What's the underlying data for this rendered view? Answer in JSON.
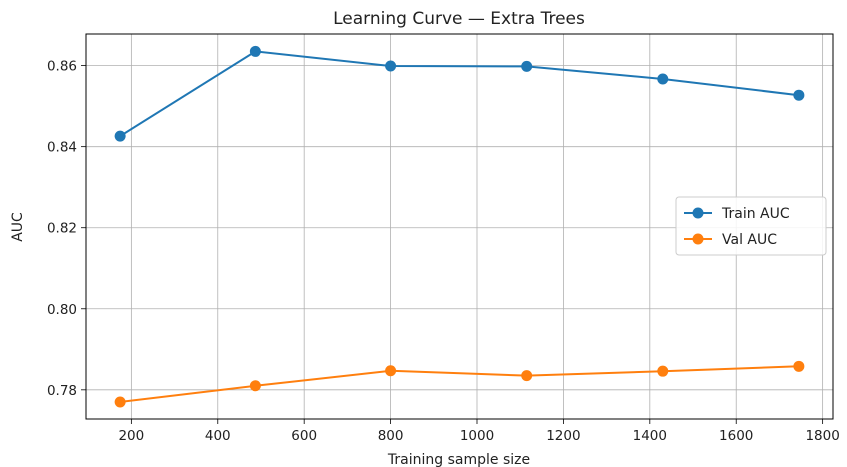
{
  "chart_data": {
    "type": "line",
    "title": "Learning Curve — Extra Trees",
    "xlabel": "Training sample size",
    "ylabel": "AUC",
    "x": [
      174,
      487,
      800,
      1115,
      1430,
      1745
    ],
    "series": [
      {
        "name": "Train AUC",
        "color": "#1f77b4",
        "values": [
          0.8426,
          0.8635,
          0.8599,
          0.8598,
          0.8567,
          0.8527
        ]
      },
      {
        "name": "Val AUC",
        "color": "#ff7f0e",
        "values": [
          0.777,
          0.781,
          0.7847,
          0.7835,
          0.7846,
          0.7858
        ]
      }
    ],
    "xlim": [
      95,
      1824
    ],
    "ylim": [
      0.7728,
      0.8678
    ],
    "xticks": [
      200,
      400,
      600,
      800,
      1000,
      1200,
      1400,
      1600,
      1800
    ],
    "xtick_labels": [
      "200",
      "400",
      "600",
      "800",
      "1000",
      "1200",
      "1400",
      "1600",
      "1800"
    ],
    "yticks": [
      0.78,
      0.8,
      0.82,
      0.84,
      0.86
    ],
    "ytick_labels": [
      "0.78",
      "0.80",
      "0.82",
      "0.84",
      "0.86"
    ],
    "grid": true,
    "legend_position": "center-right"
  }
}
